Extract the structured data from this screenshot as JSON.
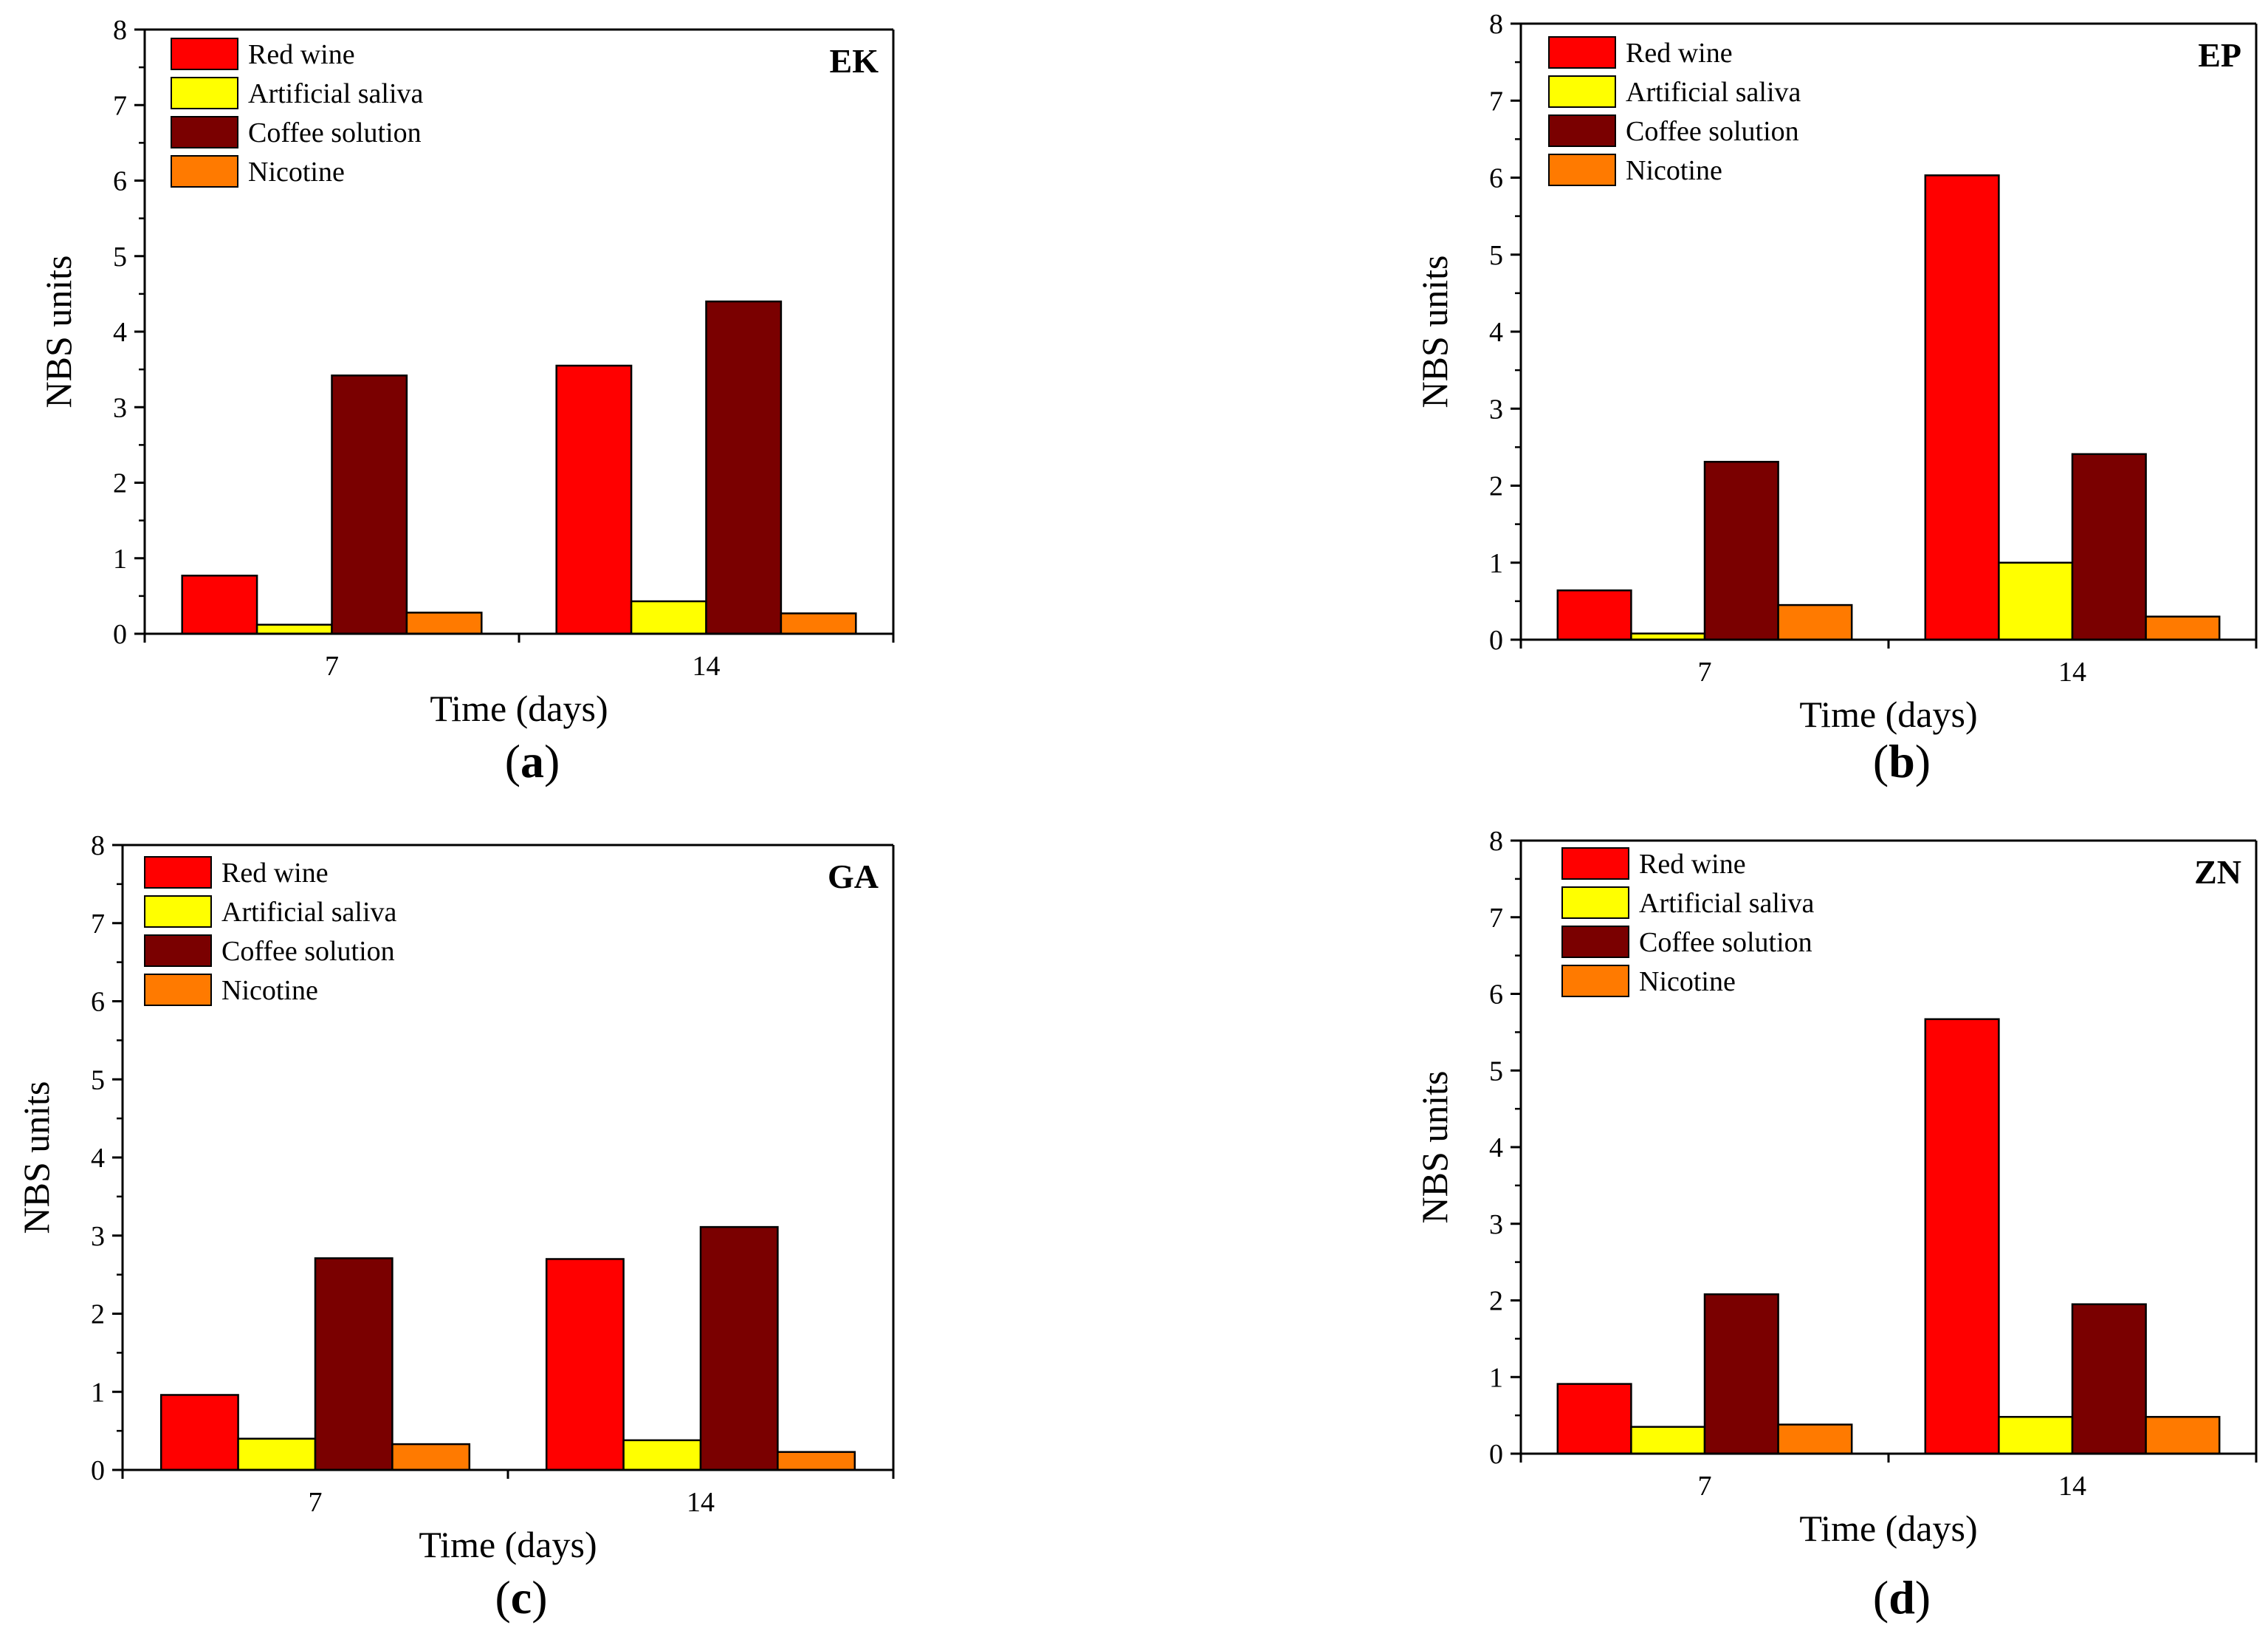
{
  "colors": {
    "Red wine": "#ff0000",
    "Artificial saliva": "#ffff00",
    "Coffee solution": "#7a0000",
    "Nicotine": "#ff7a00",
    "axis": "#000000"
  },
  "chart_data": [
    {
      "type": "bar",
      "title": "EK",
      "caption_letter": "a",
      "xlabel": "Time (days)",
      "ylabel": "NBS units",
      "ylim": [
        0,
        8
      ],
      "yticks": [
        "0",
        "1",
        "2",
        "3",
        "4",
        "5",
        "6",
        "7",
        "8"
      ],
      "categories": [
        "7",
        "14"
      ],
      "series": [
        {
          "name": "Red wine",
          "values": [
            0.77,
            3.55
          ]
        },
        {
          "name": "Artificial saliva",
          "values": [
            0.12,
            0.43
          ]
        },
        {
          "name": "Coffee solution",
          "values": [
            3.42,
            4.4
          ]
        },
        {
          "name": "Nicotine",
          "values": [
            0.28,
            0.27
          ]
        }
      ],
      "legend_position": "top-left"
    },
    {
      "type": "bar",
      "title": "EP",
      "caption_letter": "b",
      "xlabel": "Time (days)",
      "ylabel": "NBS units",
      "ylim": [
        0,
        8
      ],
      "yticks": [
        "0",
        "1",
        "2",
        "3",
        "4",
        "5",
        "6",
        "7",
        "8"
      ],
      "categories": [
        "7",
        "14"
      ],
      "series": [
        {
          "name": "Red wine",
          "values": [
            0.64,
            6.03
          ]
        },
        {
          "name": "Artificial saliva",
          "values": [
            0.08,
            1.0
          ]
        },
        {
          "name": "Coffee solution",
          "values": [
            2.31,
            2.41
          ]
        },
        {
          "name": "Nicotine",
          "values": [
            0.45,
            0.3
          ]
        }
      ],
      "legend_position": "top-left"
    },
    {
      "type": "bar",
      "title": "GA",
      "caption_letter": "c",
      "xlabel": "Time (days)",
      "ylabel": "NBS units",
      "ylim": [
        0,
        8
      ],
      "yticks": [
        "0",
        "1",
        "2",
        "3",
        "4",
        "5",
        "6",
        "7",
        "8"
      ],
      "categories": [
        "7",
        "14"
      ],
      "series": [
        {
          "name": "Red wine",
          "values": [
            0.96,
            2.7
          ]
        },
        {
          "name": "Artificial saliva",
          "values": [
            0.4,
            0.38
          ]
        },
        {
          "name": "Coffee solution",
          "values": [
            2.71,
            3.11
          ]
        },
        {
          "name": "Nicotine",
          "values": [
            0.33,
            0.23
          ]
        }
      ],
      "legend_position": "top-left"
    },
    {
      "type": "bar",
      "title": "ZN",
      "caption_letter": "d",
      "xlabel": "Time (days)",
      "ylabel": "NBS units",
      "ylim": [
        0,
        8
      ],
      "yticks": [
        "0",
        "1",
        "2",
        "3",
        "4",
        "5",
        "6",
        "7",
        "8"
      ],
      "categories": [
        "7",
        "14"
      ],
      "series": [
        {
          "name": "Red wine",
          "values": [
            0.91,
            5.67
          ]
        },
        {
          "name": "Artificial saliva",
          "values": [
            0.35,
            0.48
          ]
        },
        {
          "name": "Coffee solution",
          "values": [
            2.08,
            1.95
          ]
        },
        {
          "name": "Nicotine",
          "values": [
            0.38,
            0.48
          ]
        }
      ],
      "legend_position": "top-left"
    }
  ]
}
